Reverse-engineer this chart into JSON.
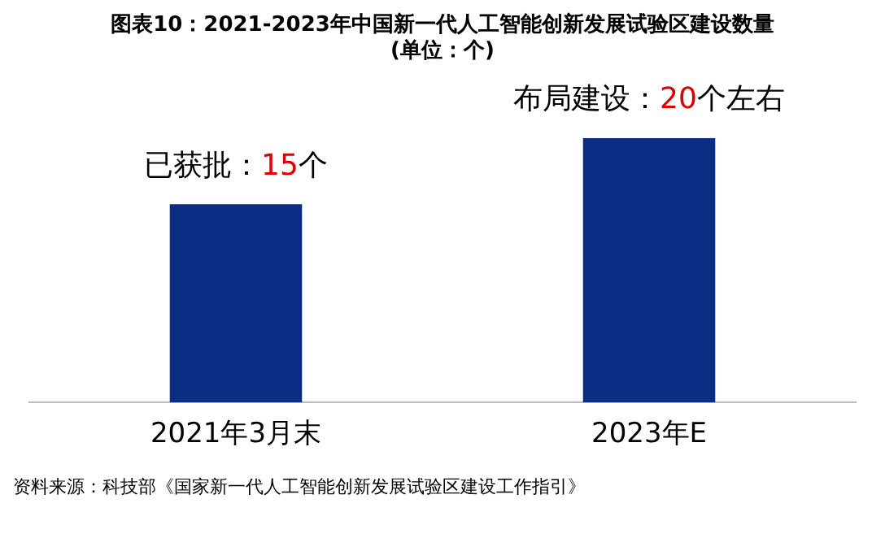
{
  "chart_data": {
    "type": "bar",
    "title": "图表10：2021-2023年中国新一代人工智能创新发展试验区建设数量",
    "subtitle": "(单位：个)",
    "categories": [
      "2021年3月末",
      "2023年E"
    ],
    "values": [
      15,
      20
    ],
    "value_labels": [
      "已获批：15个",
      "布局建设：20个左右"
    ],
    "color": "#0c2d83",
    "grid": false,
    "legend": false,
    "annotations": [
      "资料来源：科技部《国家新一代人工智能创新发展试验区建设工作指引》"
    ]
  }
}
